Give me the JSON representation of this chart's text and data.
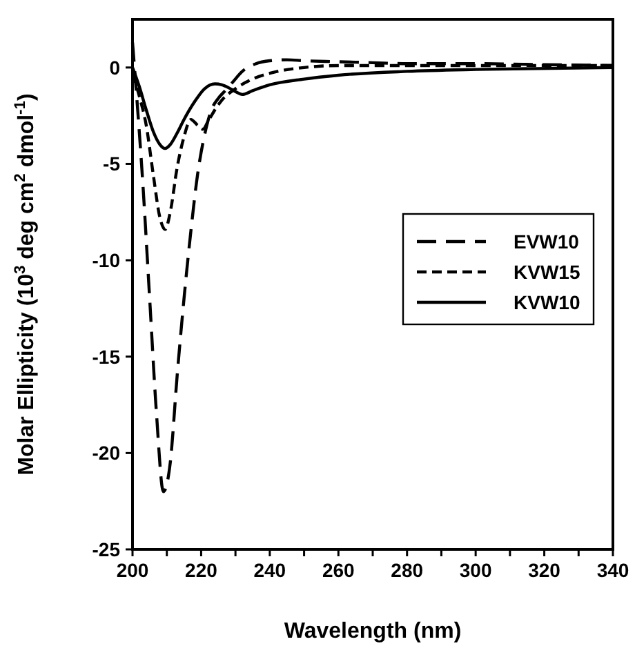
{
  "chart_data": {
    "type": "line",
    "xlabel": "Wavelength (nm)",
    "ylabel": "Molar Ellipticity (10$^{3}$ deg cm$^{2}$ dmol$^{-1}$)",
    "xlim": [
      200,
      340
    ],
    "xticks": [
      200,
      {
        "value": 210,
        "label": null
      },
      220,
      {
        "value": 230,
        "label": null
      },
      240,
      {
        "value": 250,
        "label": null
      },
      260,
      {
        "value": 270,
        "label": null
      },
      280,
      {
        "value": 290,
        "label": null
      },
      300,
      {
        "value": 310,
        "label": null
      },
      320,
      {
        "value": 330,
        "label": null
      },
      340
    ],
    "ylim": [
      -25,
      2.5
    ],
    "yticks": [
      -25,
      -20,
      -15,
      -10,
      -5,
      0
    ],
    "legend": "right",
    "series": [
      {
        "name": "EVW10",
        "color": "#000000",
        "line_style": "longdash",
        "x": [
          200,
          201,
          203,
          205,
          207,
          209,
          211,
          213,
          215,
          217,
          219,
          221,
          223,
          225,
          227,
          229,
          232,
          236,
          240,
          245,
          250,
          260,
          270,
          280,
          300,
          320,
          340
        ],
        "values": [
          1.3,
          -1,
          -6,
          -12,
          -18,
          -22,
          -20.5,
          -16,
          -12,
          -8.5,
          -5.5,
          -3.5,
          -2.2,
          -1.6,
          -1.2,
          -0.8,
          -0.2,
          0.2,
          0.35,
          0.4,
          0.35,
          0.3,
          0.25,
          0.2,
          0.2,
          0.15,
          0.1
        ]
      },
      {
        "name": "KVW15",
        "color": "#000000",
        "line_style": "dashed",
        "x": [
          200,
          202,
          204,
          206,
          208,
          209.5,
          211,
          213,
          215,
          217,
          219,
          220.5,
          222,
          224,
          226,
          230,
          235,
          240,
          250,
          260,
          280,
          300,
          320,
          340
        ],
        "values": [
          -0.3,
          -1.5,
          -3,
          -5.5,
          -7.8,
          -8.4,
          -7.5,
          -5.2,
          -3.6,
          -2.7,
          -3.0,
          -3.2,
          -2.8,
          -2.2,
          -1.7,
          -1.1,
          -0.6,
          -0.3,
          0,
          0.1,
          0.1,
          0.1,
          0.1,
          0.1
        ]
      },
      {
        "name": "KVW10",
        "color": "#000000",
        "line_style": "solid",
        "x": [
          200,
          202,
          204,
          206,
          208,
          209.5,
          211,
          213,
          215,
          218,
          221,
          224,
          226,
          228,
          230,
          232,
          235,
          240,
          250,
          260,
          280,
          300,
          340
        ],
        "values": [
          0,
          -1,
          -2.2,
          -3.3,
          -4,
          -4.2,
          -4,
          -3.4,
          -2.7,
          -1.8,
          -1.1,
          -0.85,
          -0.9,
          -1.05,
          -1.25,
          -1.4,
          -1.2,
          -0.9,
          -0.6,
          -0.4,
          -0.2,
          -0.1,
          0
        ]
      }
    ]
  }
}
